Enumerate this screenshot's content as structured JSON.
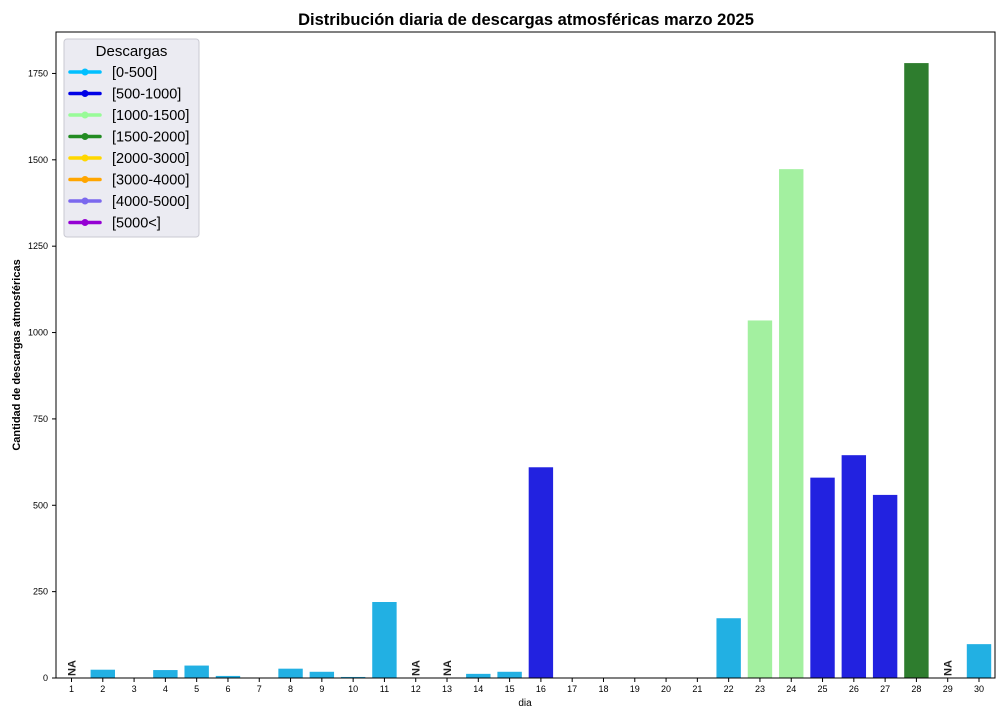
{
  "chart_data": {
    "type": "bar",
    "title": "Distribución diaria de descargas atmosféricas marzo 2025",
    "xlabel": "dia",
    "ylabel": "Cantidad de descargas atmosféricas",
    "ylim": [
      0,
      1870
    ],
    "yticks": [
      0,
      250,
      500,
      750,
      1000,
      1250,
      1500,
      1750
    ],
    "categories": [
      "1",
      "2",
      "3",
      "4",
      "5",
      "6",
      "7",
      "8",
      "9",
      "10",
      "11",
      "12",
      "13",
      "14",
      "15",
      "16",
      "17",
      "18",
      "19",
      "20",
      "21",
      "22",
      "23",
      "24",
      "25",
      "26",
      "27",
      "28",
      "29",
      "30"
    ],
    "values": [
      null,
      24,
      0,
      23,
      36,
      6,
      0,
      27,
      18,
      3,
      220,
      null,
      null,
      12,
      18,
      610,
      0,
      0,
      0,
      0,
      0,
      173,
      1035,
      1473,
      580,
      645,
      530,
      1780,
      null,
      98
    ],
    "range_labels": [
      "[0-500]",
      "[0-500]",
      "[0-500]",
      "[0-500]",
      "[0-500]",
      "[0-500]",
      "[0-500]",
      "[0-500]",
      "[0-500]",
      "[0-500]",
      "[0-500]",
      "[0-500]",
      "[0-500]",
      "[0-500]",
      "[0-500]",
      "[500-1000]",
      "[0-500]",
      "[0-500]",
      "[0-500]",
      "[0-500]",
      "[0-500]",
      "[0-500]",
      "[1000-1500]",
      "[1000-1500]",
      "[500-1000]",
      "[500-1000]",
      "[500-1000]",
      "[1500-2000]",
      "[0-500]",
      "[0-500]"
    ],
    "na_text": "NA",
    "grid": false,
    "legend_position": "top-left",
    "legend": {
      "title": "Descargas",
      "items": [
        {
          "label": "[0-500]",
          "color": "#00bfff"
        },
        {
          "label": "[500-1000]",
          "color": "#0000e6"
        },
        {
          "label": "[1000-1500]",
          "color": "#98fb98"
        },
        {
          "label": "[1500-2000]",
          "color": "#228b22"
        },
        {
          "label": "[2000-3000]",
          "color": "#ffd700"
        },
        {
          "label": "[3000-4000]",
          "color": "#ffa500"
        },
        {
          "label": "[4000-5000]",
          "color": "#7b68ee"
        },
        {
          "label": "[5000<]",
          "color": "#9400d3"
        }
      ]
    },
    "bar_colors": {
      "[0-500]": "#22b0e3",
      "[500-1000]": "#2222e0",
      "[1000-1500]": "#a3f0a0",
      "[1500-2000]": "#2e7d2e",
      "[2000-3000]": "#f5cc10",
      "[3000-4000]": "#f0a020",
      "[4000-5000]": "#7c6aea",
      "[5000<]": "#8f10cc"
    }
  }
}
